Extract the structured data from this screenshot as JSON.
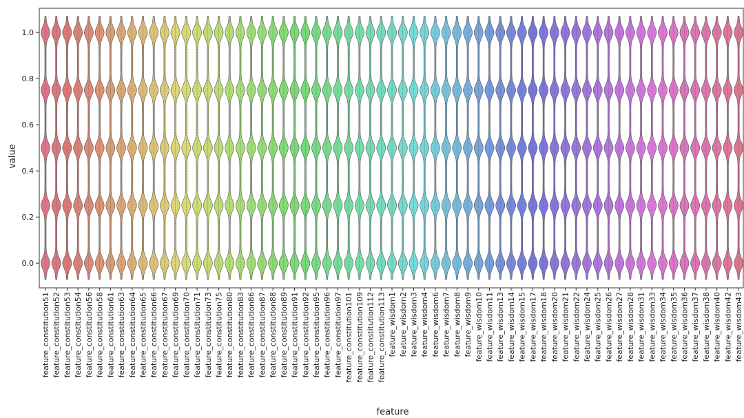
{
  "chart_data": {
    "type": "violin",
    "x_label": "feature",
    "y_label": "value",
    "categories": [
      "feature_constitution51",
      "feature_constitution52",
      "feature_constitution53",
      "feature_constitution54",
      "feature_constitution56",
      "feature_constitution58",
      "feature_constitution61",
      "feature_constitution63",
      "feature_constitution64",
      "feature_constitution65",
      "feature_constitution66",
      "feature_constitution67",
      "feature_constitution69",
      "feature_constitution70",
      "feature_constitution71",
      "feature_constitution73",
      "feature_constitution75",
      "feature_constitution80",
      "feature_constitution83",
      "feature_constitution86",
      "feature_constitution87",
      "feature_constitution88",
      "feature_constitution89",
      "feature_constitution91",
      "feature_constitution92",
      "feature_constitution95",
      "feature_constitution96",
      "feature_constitution97",
      "feature_constitution101",
      "feature_constitution109",
      "feature_constitution112",
      "feature_constitution113",
      "feature_wisdom1",
      "feature_wisdom2",
      "feature_wisdom3",
      "feature_wisdom4",
      "feature_wisdom6",
      "feature_wisdom7",
      "feature_wisdom8",
      "feature_wisdom9",
      "feature_wisdom10",
      "feature_wisdom11",
      "feature_wisdom13",
      "feature_wisdom14",
      "feature_wisdom15",
      "feature_wisdom17",
      "feature_wisdom18",
      "feature_wisdom20",
      "feature_wisdom21",
      "feature_wisdom22",
      "feature_wisdom24",
      "feature_wisdom25",
      "feature_wisdom26",
      "feature_wisdom27",
      "feature_wisdom28",
      "feature_wisdom31",
      "feature_wisdom33",
      "feature_wisdom34",
      "feature_wisdom35",
      "feature_wisdom36",
      "feature_wisdom37",
      "feature_wisdom38",
      "feature_wisdom40",
      "feature_wisdom42",
      "feature_wisdom43"
    ],
    "levels": [
      0,
      0.25,
      0.5,
      0.75,
      1
    ],
    "palette": "husl",
    "ylim": [
      -0.107,
      1.105
    ],
    "yticks": [
      {
        "value": 0,
        "label": "0.0"
      },
      {
        "value": 0.2,
        "label": "0.2"
      },
      {
        "value": 0.4,
        "label": "0.4"
      },
      {
        "value": 0.6,
        "label": "0.6"
      },
      {
        "value": 0.8,
        "label": "0.8"
      },
      {
        "value": 1,
        "label": "1.0"
      }
    ]
  }
}
